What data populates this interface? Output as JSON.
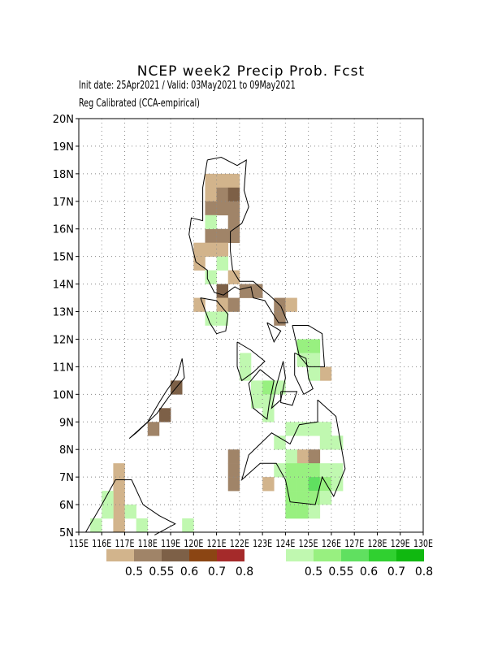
{
  "header": {
    "title": "NCEP week2 Precip Prob. Fcst",
    "line1": "Init date: 25Apr2021 / Valid: 03May2021 to 09May2021",
    "line2": "Reg Calibrated (CCA-empirical)"
  },
  "axes": {
    "lat_labels": [
      "20N",
      "19N",
      "18N",
      "17N",
      "16N",
      "15N",
      "14N",
      "13N",
      "12N",
      "11N",
      "10N",
      "9N",
      "8N",
      "7N",
      "6N",
      "5N"
    ],
    "lon_labels": [
      "115E",
      "116E",
      "117E",
      "118E",
      "119E",
      "120E",
      "121E",
      "122E",
      "123E",
      "124E",
      "125E",
      "126E",
      "127E",
      "128E",
      "129E",
      "130E"
    ]
  },
  "legend": {
    "dry": {
      "labels": [
        "0.5",
        "0.55",
        "0.6",
        "0.7",
        "0.8"
      ],
      "colors": [
        "#d2b48c",
        "#a08468",
        "#7d6047",
        "#8b4513",
        "#a52a2a"
      ]
    },
    "wet": {
      "labels": [
        "0.5",
        "0.55",
        "0.6",
        "0.7",
        "0.8"
      ],
      "colors": [
        "#c0f8b0",
        "#98f080",
        "#60e060",
        "#30d030",
        "#10b810"
      ]
    }
  },
  "map_data": {
    "type": "grid-probability",
    "lon_range": [
      115,
      130
    ],
    "lat_range": [
      5,
      20
    ],
    "cell_deg": 0.5,
    "dry_cells": [
      [
        120.5,
        17.5,
        0.5
      ],
      [
        121.0,
        17.5,
        0.5
      ],
      [
        121.5,
        17.5,
        0.5
      ],
      [
        120.5,
        17.0,
        0.5
      ],
      [
        121.0,
        17.0,
        0.55
      ],
      [
        121.5,
        17.0,
        0.6
      ],
      [
        120.5,
        16.5,
        0.55
      ],
      [
        121.0,
        16.5,
        0.55
      ],
      [
        121.5,
        16.5,
        0.55
      ],
      [
        121.5,
        16.0,
        0.55
      ],
      [
        121.0,
        15.5,
        0.55
      ],
      [
        120.5,
        15.5,
        0.55
      ],
      [
        121.5,
        15.5,
        0.55
      ],
      [
        120.0,
        15.0,
        0.5
      ],
      [
        120.5,
        15.0,
        0.5
      ],
      [
        121.0,
        15.0,
        0.5
      ],
      [
        120.0,
        14.5,
        0.5
      ],
      [
        121.5,
        14.0,
        0.5
      ],
      [
        121.0,
        13.5,
        0.6
      ],
      [
        122.0,
        13.5,
        0.55
      ],
      [
        122.5,
        13.5,
        0.55
      ],
      [
        120.0,
        13.0,
        0.5
      ],
      [
        121.0,
        13.0,
        0.5
      ],
      [
        121.5,
        13.0,
        0.55
      ],
      [
        123.5,
        13.0,
        0.55
      ],
      [
        124.0,
        13.0,
        0.5
      ],
      [
        123.5,
        12.5,
        0.55
      ],
      [
        125.5,
        10.5,
        0.5
      ],
      [
        119.0,
        10.0,
        0.6
      ],
      [
        118.5,
        9.0,
        0.6
      ],
      [
        118.0,
        8.5,
        0.55
      ],
      [
        124.5,
        7.5,
        0.5
      ],
      [
        125.0,
        7.5,
        0.55
      ],
      [
        121.5,
        7.0,
        0.55
      ],
      [
        121.5,
        6.5,
        0.55
      ],
      [
        121.5,
        7.5,
        0.55
      ],
      [
        123.0,
        6.5,
        0.5
      ],
      [
        116.5,
        6.5,
        0.5
      ],
      [
        116.5,
        6.0,
        0.5
      ],
      [
        116.5,
        5.5,
        0.5
      ],
      [
        116.5,
        5.0,
        0.5
      ],
      [
        116.5,
        7.0,
        0.5
      ]
    ],
    "wet_cells": [
      [
        120.5,
        16.0,
        0.5
      ],
      [
        121.0,
        14.5,
        0.5
      ],
      [
        120.5,
        14.0,
        0.5
      ],
      [
        120.5,
        12.5,
        0.5
      ],
      [
        121.0,
        12.5,
        0.5
      ],
      [
        124.5,
        11.5,
        0.55
      ],
      [
        125.0,
        11.5,
        0.55
      ],
      [
        124.5,
        11.0,
        0.5
      ],
      [
        125.0,
        11.0,
        0.5
      ],
      [
        125.0,
        10.5,
        0.5
      ],
      [
        122.0,
        11.0,
        0.5
      ],
      [
        122.0,
        10.5,
        0.5
      ],
      [
        122.5,
        10.0,
        0.5
      ],
      [
        123.0,
        10.0,
        0.55
      ],
      [
        123.5,
        10.0,
        0.5
      ],
      [
        123.0,
        9.5,
        0.5
      ],
      [
        122.5,
        9.5,
        0.5
      ],
      [
        123.0,
        9.0,
        0.5
      ],
      [
        124.0,
        8.5,
        0.5
      ],
      [
        124.5,
        8.5,
        0.5
      ],
      [
        125.0,
        8.5,
        0.5
      ],
      [
        125.5,
        8.5,
        0.5
      ],
      [
        123.5,
        8.0,
        0.5
      ],
      [
        125.5,
        8.0,
        0.5
      ],
      [
        126.0,
        8.0,
        0.5
      ],
      [
        124.0,
        7.5,
        0.5
      ],
      [
        123.5,
        7.0,
        0.5
      ],
      [
        124.0,
        7.0,
        0.55
      ],
      [
        124.5,
        7.0,
        0.55
      ],
      [
        125.0,
        7.0,
        0.55
      ],
      [
        125.5,
        7.0,
        0.5
      ],
      [
        126.0,
        7.0,
        0.5
      ],
      [
        124.0,
        6.5,
        0.55
      ],
      [
        124.5,
        6.5,
        0.55
      ],
      [
        125.0,
        6.5,
        0.6
      ],
      [
        125.5,
        6.5,
        0.55
      ],
      [
        126.0,
        6.5,
        0.5
      ],
      [
        124.0,
        6.0,
        0.55
      ],
      [
        124.5,
        6.0,
        0.55
      ],
      [
        125.0,
        6.0,
        0.55
      ],
      [
        125.5,
        6.0,
        0.5
      ],
      [
        124.0,
        5.5,
        0.55
      ],
      [
        124.5,
        5.5,
        0.55
      ],
      [
        125.0,
        5.5,
        0.5
      ],
      [
        116.0,
        6.0,
        0.5
      ],
      [
        116.0,
        5.5,
        0.5
      ],
      [
        115.5,
        5.0,
        0.5
      ],
      [
        117.0,
        5.5,
        0.5
      ],
      [
        117.5,
        5.0,
        0.5
      ],
      [
        119.5,
        5.0,
        0.5
      ]
    ]
  }
}
